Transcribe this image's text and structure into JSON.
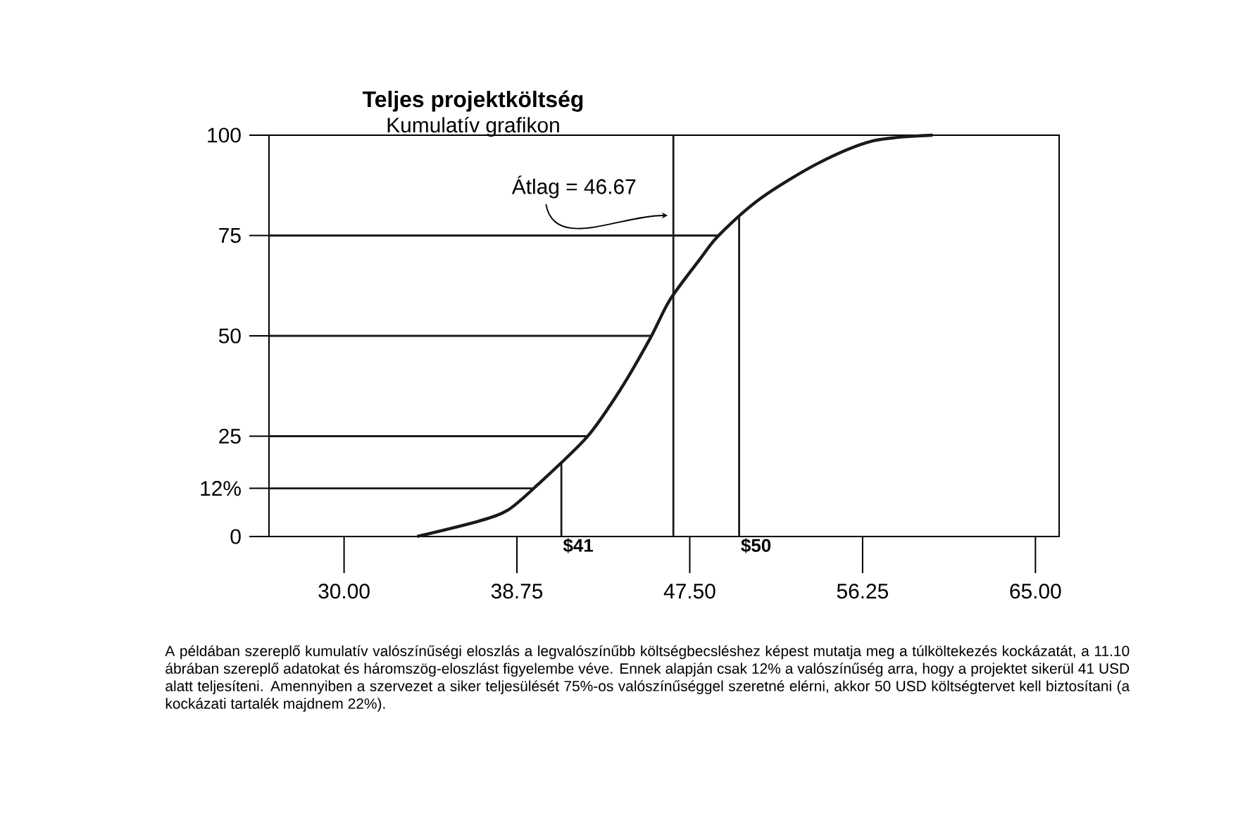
{
  "chart_data": {
    "type": "line",
    "title": "Teljes projektköltség",
    "subtitle": "Kumulatív grafikon",
    "x": [
      33.7,
      36.8,
      38.3,
      39.8,
      42.3,
      44.0,
      45.5,
      46.5,
      48.0,
      49.0,
      51.1,
      54.0,
      56.8,
      59.8
    ],
    "values": [
      0,
      3.8,
      6.6,
      12.9,
      24.8,
      36.7,
      49.4,
      59,
      69,
      75.2,
      84.3,
      93,
      98.6,
      100
    ],
    "color": "#1a1a1a",
    "xlim": [
      26.2,
      66.2
    ],
    "ylim": [
      0,
      100
    ],
    "xticks": [
      {
        "value": 30,
        "label": "30.00"
      },
      {
        "value": 38.75,
        "label": "38.75"
      },
      {
        "value": 47.5,
        "label": "47.50"
      },
      {
        "value": 56.25,
        "label": "56.25"
      },
      {
        "value": 65,
        "label": "65.00"
      }
    ],
    "yticks": [
      0,
      {
        "value": 12,
        "label": "12%"
      },
      25,
      50,
      75,
      100
    ],
    "ref_lines": [
      {
        "axis": "y",
        "value": 12
      },
      {
        "axis": "y",
        "value": 25
      },
      {
        "axis": "y",
        "value": 50
      },
      {
        "axis": "y",
        "value": 75
      },
      {
        "axis": "x",
        "value": 41,
        "label": "$41"
      },
      {
        "axis": "x",
        "value": 50,
        "label": "$50"
      },
      {
        "axis": "x",
        "value": 46.67
      }
    ],
    "annotations": [
      {
        "text": "Átlag = 46.67",
        "x": 46.67,
        "y": 80
      },
      "A példában szereplő kumulatív valószínűségi eloszlás a legvalószínűbb költségbecsléshez képest mutatja meg a túlköltekezés kockázatát, a 11.10 ábrában szereplő adatokat és háromszög-eloszlást figyelembe véve. Ennek alapján csak 12% a valószínűség arra, hogy a projektet sikerül 41 USD alatt teljesíteni. Amennyiben a szervezet a siker teljesülését 75%-os valószínűséggel szeretné elérni, akkor 50 USD költségtervet kell biztosítani (a kockázati tartalék majdnem 22%)."
    ]
  }
}
